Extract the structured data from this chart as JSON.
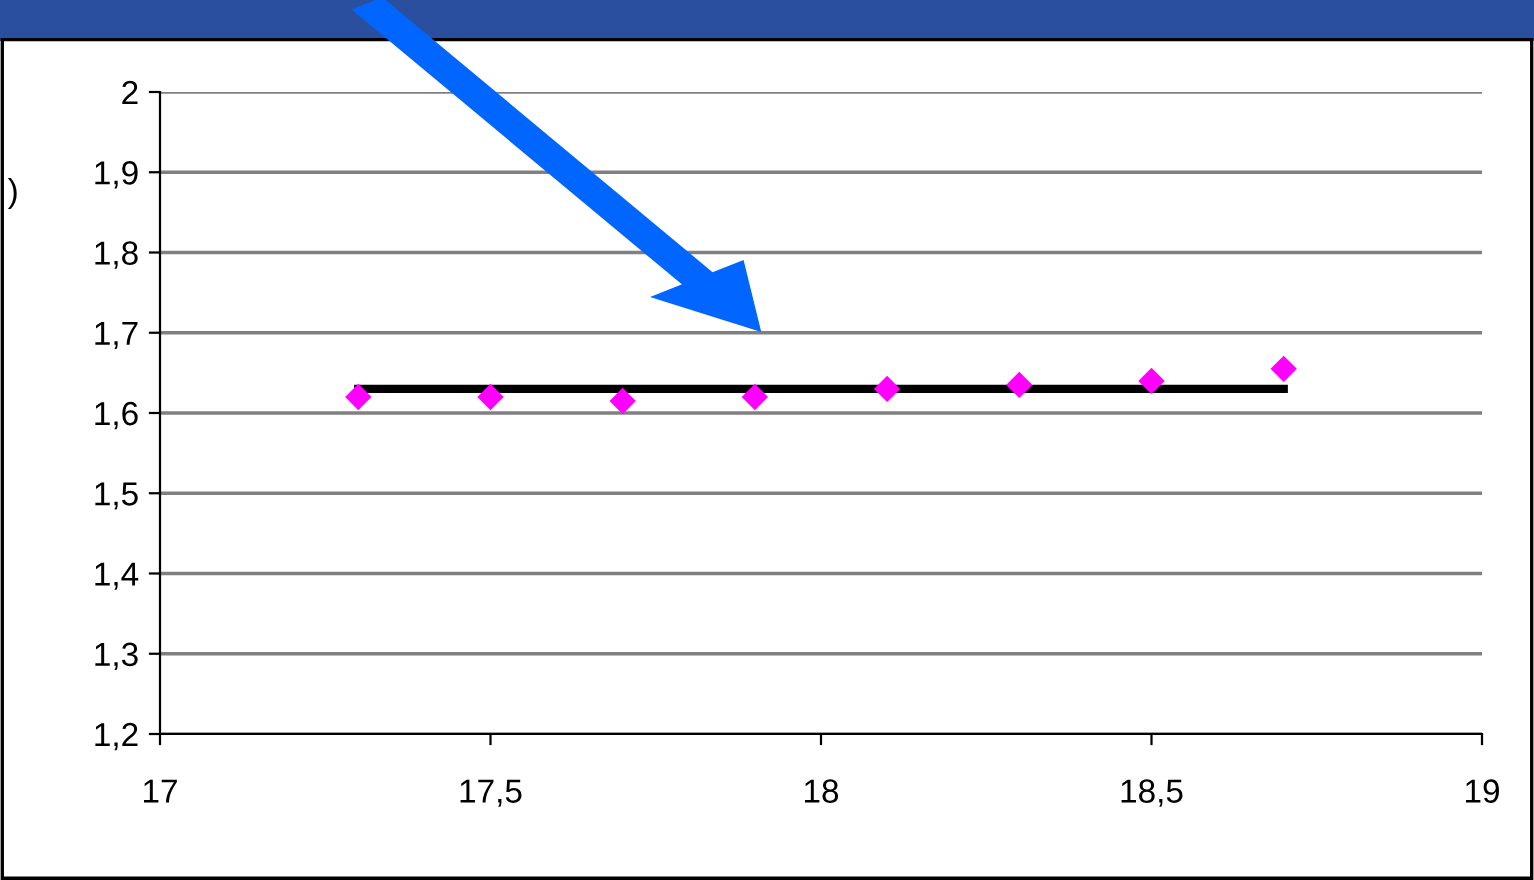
{
  "chart_data": {
    "type": "scatter",
    "xlim": [
      17,
      19
    ],
    "ylim": [
      1.2,
      2
    ],
    "xticks": [
      17,
      {
        "value": 17.5,
        "label": "17,5"
      },
      18,
      {
        "value": 18.5,
        "label": "18,5"
      },
      19
    ],
    "yticks": [
      {
        "value": 1.2,
        "label": "1,2"
      },
      {
        "value": 1.3,
        "label": "1,3"
      },
      {
        "value": 1.4,
        "label": "1,4"
      },
      {
        "value": 1.5,
        "label": "1,5"
      },
      {
        "value": 1.6,
        "label": "1,6"
      },
      {
        "value": 1.7,
        "label": "1,7"
      },
      {
        "value": 1.8,
        "label": "1,8"
      },
      {
        "value": 1.9,
        "label": "1,9"
      },
      2
    ],
    "grid": "y",
    "marker": "diamond",
    "series": [
      {
        "color": "#ff00ff",
        "x": [
          17.3,
          17.5,
          17.7,
          17.9,
          18.1,
          18.3,
          18.5,
          18.7
        ],
        "values": [
          1.62,
          1.62,
          1.615,
          1.62,
          1.63,
          1.635,
          1.64,
          1.655
        ]
      },
      {
        "type": "line",
        "color": "#000000",
        "x": [
          17.3,
          18.7
        ],
        "values": [
          1.63,
          1.63
        ],
        "marker": "none"
      }
    ],
    "annotations": [
      ")"
    ]
  }
}
